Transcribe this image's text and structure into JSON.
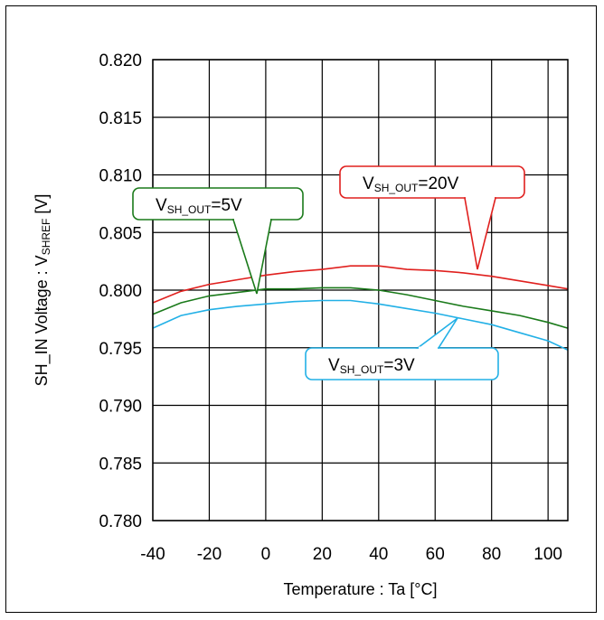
{
  "chart_data": {
    "type": "line",
    "title": "",
    "xlabel": "Temperature : Ta [°C]",
    "ylabel": {
      "prefix": "SH_IN Voltage : V",
      "sub": "SHREF",
      "suffix": " [V]"
    },
    "xlim": [
      -40,
      107
    ],
    "ylim": [
      0.78,
      0.82
    ],
    "grid": true,
    "x_ticks": [
      -40,
      -20,
      0,
      20,
      40,
      60,
      80,
      100
    ],
    "x_tick_labels": [
      "-40",
      "-20",
      "0",
      "20",
      "40",
      "60",
      "80",
      "100"
    ],
    "y_ticks": [
      0.78,
      0.785,
      0.79,
      0.795,
      0.8,
      0.805,
      0.81,
      0.815,
      0.82
    ],
    "y_tick_labels": [
      "0.780",
      "0.785",
      "0.790",
      "0.795",
      "0.800",
      "0.805",
      "0.810",
      "0.815",
      "0.820"
    ],
    "series": [
      {
        "name": "V_SH_OUT=20V",
        "label": {
          "v": "V",
          "sub": "SH_OUT",
          "rest": "=20V"
        },
        "color": "#e0201e",
        "x": [
          -40,
          -30,
          -20,
          -10,
          0,
          10,
          20,
          30,
          40,
          50,
          60,
          70,
          80,
          90,
          100,
          107
        ],
        "y": [
          0.7989,
          0.7999,
          0.8005,
          0.8009,
          0.8013,
          0.8016,
          0.8018,
          0.8021,
          0.8021,
          0.8018,
          0.8017,
          0.8015,
          0.8012,
          0.8008,
          0.8004,
          0.8001
        ]
      },
      {
        "name": "V_SH_OUT=5V",
        "label": {
          "v": "V",
          "sub": "SH_OUT",
          "rest": "=5V"
        },
        "color": "#1a7a1a",
        "x": [
          -40,
          -30,
          -20,
          -10,
          0,
          10,
          20,
          30,
          40,
          50,
          60,
          70,
          80,
          90,
          100,
          107
        ],
        "y": [
          0.7979,
          0.7989,
          0.7995,
          0.7998,
          0.8001,
          0.8001,
          0.8002,
          0.8002,
          0.8,
          0.7996,
          0.7991,
          0.7986,
          0.7982,
          0.7978,
          0.7972,
          0.7967
        ]
      },
      {
        "name": "V_SH_OUT=3V",
        "label": {
          "v": "V",
          "sub": "SH_OUT",
          "rest": "=3V"
        },
        "color": "#22b0e6",
        "x": [
          -40,
          -30,
          -20,
          -10,
          0,
          10,
          20,
          30,
          40,
          50,
          60,
          70,
          80,
          90,
          100,
          107
        ],
        "y": [
          0.7967,
          0.7978,
          0.7983,
          0.7986,
          0.7988,
          0.799,
          0.7991,
          0.7991,
          0.7988,
          0.7984,
          0.798,
          0.7975,
          0.797,
          0.7963,
          0.7956,
          0.7948
        ]
      }
    ]
  }
}
